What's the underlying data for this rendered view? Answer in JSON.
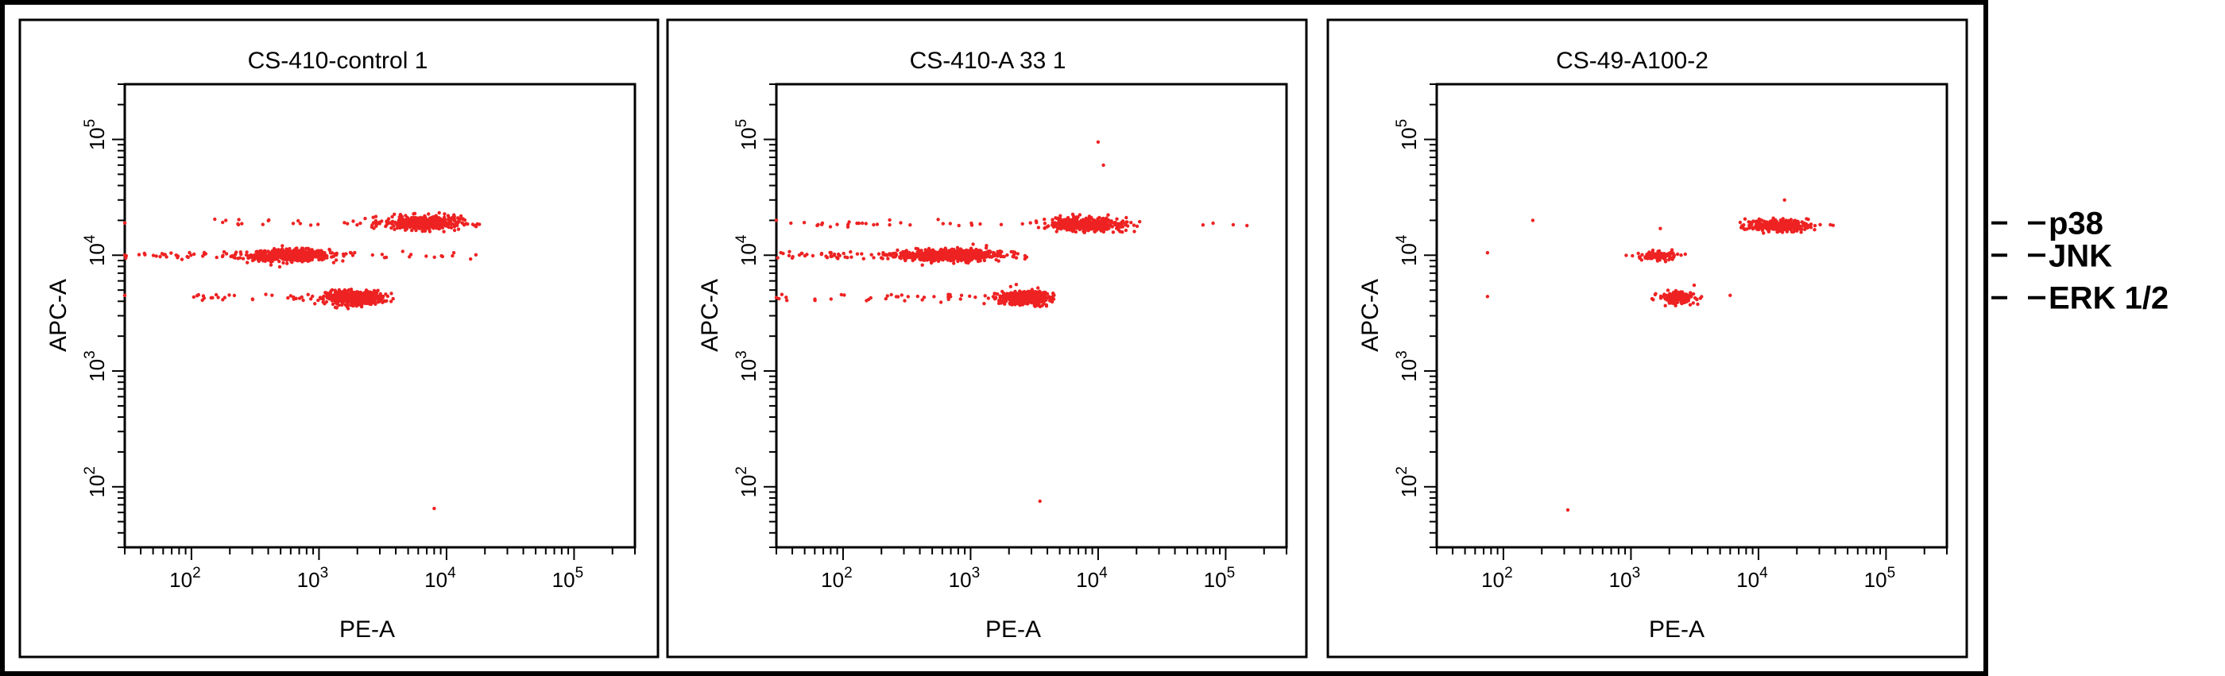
{
  "chart_data": [
    {
      "type": "scatter",
      "title": "CS-410-control 1",
      "xlabel": "PE-A",
      "ylabel": "APC-A",
      "x_scale": "log",
      "y_scale": "log",
      "xlim": [
        30,
        300000
      ],
      "ylim": [
        30,
        300000
      ],
      "x_ticks": [
        {
          "base": "10",
          "exp": "2",
          "value": 100
        },
        {
          "base": "10",
          "exp": "3",
          "value": 1000
        },
        {
          "base": "10",
          "exp": "4",
          "value": 10000
        },
        {
          "base": "10",
          "exp": "5",
          "value": 100000
        }
      ],
      "y_ticks": [
        {
          "base": "10",
          "exp": "2",
          "value": 100
        },
        {
          "base": "10",
          "exp": "3",
          "value": 1000
        },
        {
          "base": "10",
          "exp": "4",
          "value": 10000
        },
        {
          "base": "10",
          "exp": "5",
          "value": 100000
        }
      ],
      "point_color": "#ee2222",
      "clusters": [
        {
          "x_center": 600,
          "y_center": 10000,
          "x_spread": 0.15,
          "y_spread": 0.025,
          "n": 650
        },
        {
          "x_center": 1900,
          "y_center": 4300,
          "x_spread": 0.11,
          "y_spread": 0.03,
          "n": 450
        },
        {
          "x_center": 6500,
          "y_center": 19000,
          "x_spread": 0.15,
          "y_spread": 0.03,
          "n": 420
        }
      ],
      "streaks": [
        {
          "y": 10000,
          "x_from": 30,
          "x_to": 600,
          "n": 55
        },
        {
          "y": 4300,
          "x_from": 50,
          "x_to": 1900,
          "n": 35
        },
        {
          "y": 19000,
          "x_from": 150,
          "x_to": 6500,
          "n": 30
        },
        {
          "y": 10000,
          "x_from": 1500,
          "x_to": 20000,
          "n": 20
        }
      ],
      "outliers": [
        {
          "x": 8000,
          "y": 65
        },
        {
          "x": 30,
          "y": 19000
        },
        {
          "x": 30,
          "y": 10000
        },
        {
          "x": 30,
          "y": 4500
        }
      ]
    },
    {
      "type": "scatter",
      "title": "CS-410-A 33 1",
      "xlabel": "PE-A",
      "ylabel": "APC-A",
      "x_scale": "log",
      "y_scale": "log",
      "xlim": [
        30,
        300000
      ],
      "ylim": [
        30,
        300000
      ],
      "x_ticks": [
        {
          "base": "10",
          "exp": "2",
          "value": 100
        },
        {
          "base": "10",
          "exp": "3",
          "value": 1000
        },
        {
          "base": "10",
          "exp": "4",
          "value": 10000
        },
        {
          "base": "10",
          "exp": "5",
          "value": 100000
        }
      ],
      "y_ticks": [
        {
          "base": "10",
          "exp": "2",
          "value": 100
        },
        {
          "base": "10",
          "exp": "3",
          "value": 1000
        },
        {
          "base": "10",
          "exp": "4",
          "value": 10000
        },
        {
          "base": "10",
          "exp": "5",
          "value": 100000
        }
      ],
      "point_color": "#ee2222",
      "clusters": [
        {
          "x_center": 700,
          "y_center": 10000,
          "x_spread": 0.2,
          "y_spread": 0.025,
          "n": 650
        },
        {
          "x_center": 2600,
          "y_center": 4300,
          "x_spread": 0.1,
          "y_spread": 0.03,
          "n": 380
        },
        {
          "x_center": 8000,
          "y_center": 18500,
          "x_spread": 0.14,
          "y_spread": 0.03,
          "n": 380
        }
      ],
      "streaks": [
        {
          "y": 10000,
          "x_from": 30,
          "x_to": 700,
          "n": 60
        },
        {
          "y": 4300,
          "x_from": 30,
          "x_to": 2600,
          "n": 40
        },
        {
          "y": 18500,
          "x_from": 30,
          "x_to": 8000,
          "n": 35
        },
        {
          "y": 18500,
          "x_from": 8000,
          "x_to": 200000,
          "n": 8
        }
      ],
      "outliers": [
        {
          "x": 3500,
          "y": 75
        },
        {
          "x": 10000,
          "y": 95000
        },
        {
          "x": 30,
          "y": 20000
        },
        {
          "x": 30,
          "y": 4300
        },
        {
          "x": 11000,
          "y": 60000
        }
      ]
    },
    {
      "type": "scatter",
      "title": "CS-49-A100-2",
      "xlabel": "PE-A",
      "ylabel": "APC-A",
      "x_scale": "log",
      "y_scale": "log",
      "xlim": [
        30,
        300000
      ],
      "ylim": [
        30,
        300000
      ],
      "x_ticks": [
        {
          "base": "10",
          "exp": "2",
          "value": 100
        },
        {
          "base": "10",
          "exp": "3",
          "value": 1000
        },
        {
          "base": "10",
          "exp": "4",
          "value": 10000
        },
        {
          "base": "10",
          "exp": "5",
          "value": 100000
        }
      ],
      "y_ticks": [
        {
          "base": "10",
          "exp": "2",
          "value": 100
        },
        {
          "base": "10",
          "exp": "3",
          "value": 1000
        },
        {
          "base": "10",
          "exp": "4",
          "value": 10000
        },
        {
          "base": "10",
          "exp": "5",
          "value": 100000
        }
      ],
      "point_color": "#ee2222",
      "clusters": [
        {
          "x_center": 1600,
          "y_center": 9800,
          "x_spread": 0.08,
          "y_spread": 0.02,
          "n": 110
        },
        {
          "x_center": 2300,
          "y_center": 4300,
          "x_spread": 0.07,
          "y_spread": 0.025,
          "n": 170
        },
        {
          "x_center": 14000,
          "y_center": 18000,
          "x_spread": 0.12,
          "y_spread": 0.025,
          "n": 300
        }
      ],
      "streaks": [
        {
          "y": 18000,
          "x_from": 14000,
          "x_to": 40000,
          "n": 15
        }
      ],
      "outliers": [
        {
          "x": 75,
          "y": 10500
        },
        {
          "x": 75,
          "y": 4400
        },
        {
          "x": 170,
          "y": 20000
        },
        {
          "x": 320,
          "y": 63
        },
        {
          "x": 1700,
          "y": 17000
        },
        {
          "x": 6000,
          "y": 4500
        },
        {
          "x": 16000,
          "y": 30000
        }
      ]
    }
  ],
  "side_labels": [
    {
      "text": "p38",
      "value": 19000
    },
    {
      "text": "JNK",
      "value": 10000
    },
    {
      "text": "ERK 1/2",
      "value": 4300
    }
  ]
}
